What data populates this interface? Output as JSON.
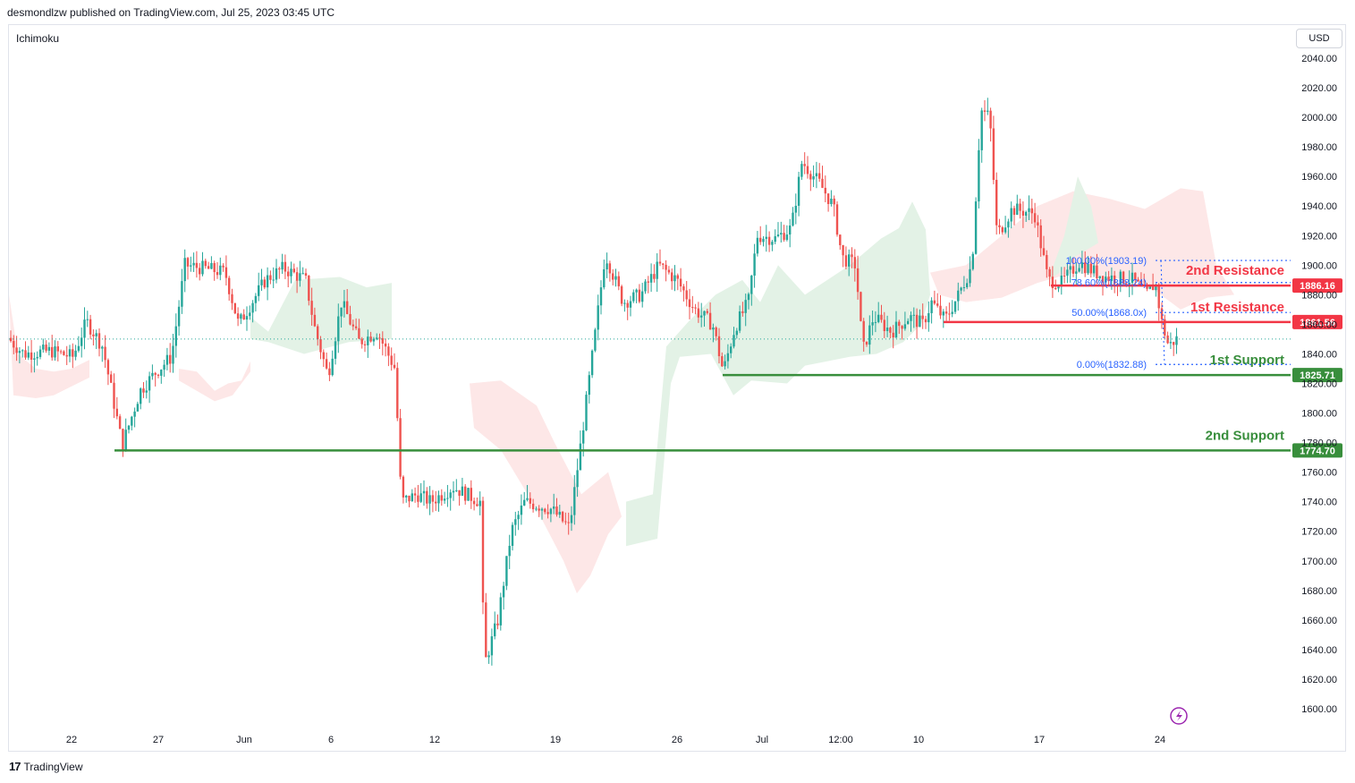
{
  "header": {
    "publisher": "desmondlzw published on TradingView.com, Jul 25, 2023 03:45 UTC"
  },
  "indicator": "Ichimoku",
  "currency": "USD",
  "brand": "TradingView",
  "colors": {
    "up": "#26a69a",
    "down": "#ef5350",
    "resistance": "#f23645",
    "support": "#388e3c",
    "fib": "#2962ff",
    "cloud_bull": "#e3f2e6",
    "cloud_bear": "#fde7e7",
    "tag_red": "#f23645",
    "tag_green": "#388e3c"
  },
  "chart_data": {
    "type": "candlestick",
    "symbol_currency": "USD",
    "ylim": [
      1587,
      2046
    ],
    "y_ticks": [
      1600,
      1620,
      1640,
      1660,
      1680,
      1700,
      1720,
      1740,
      1760,
      1780,
      1800,
      1820,
      1840,
      1860,
      1880,
      1900,
      1920,
      1940,
      1960,
      1980,
      2000,
      2020,
      2040
    ],
    "x_ticks": [
      "22",
      "27",
      "Jun",
      "6",
      "12",
      "19",
      "26",
      "Jul",
      "12:00",
      "10",
      "17",
      "24"
    ],
    "levels": [
      {
        "name": "2nd Resistance",
        "price": 1886.16,
        "kind": "resistance",
        "tag": "1886.16"
      },
      {
        "name": "1st Resistance",
        "price": 1861.56,
        "kind": "resistance",
        "tag": "1861.56"
      },
      {
        "name": "1st Support",
        "price": 1825.71,
        "kind": "support",
        "tag": "1825.71"
      },
      {
        "name": "2nd Support",
        "price": 1774.7,
        "kind": "support",
        "tag": "1774.70"
      }
    ],
    "fibonacci": [
      {
        "label": "100.00%(1903.19)",
        "price": 1903.19
      },
      {
        "label": "78.60%(1888.24)",
        "price": 1888.24
      },
      {
        "label": "50.00%(1868.0x)",
        "price": 1868.0
      },
      {
        "label": "0.00%(1832.88)",
        "price": 1832.88
      }
    ],
    "last_price": 1850,
    "anchors": [
      [
        10,
        1852
      ],
      [
        30,
        1840
      ],
      [
        60,
        1842
      ],
      [
        85,
        1838
      ],
      [
        100,
        1862
      ],
      [
        118,
        1845
      ],
      [
        128,
        1815
      ],
      [
        140,
        1778
      ],
      [
        160,
        1815
      ],
      [
        178,
        1828
      ],
      [
        195,
        1838
      ],
      [
        210,
        1900
      ],
      [
        230,
        1898
      ],
      [
        255,
        1895
      ],
      [
        270,
        1860
      ],
      [
        300,
        1890
      ],
      [
        320,
        1898
      ],
      [
        345,
        1890
      ],
      [
        355,
        1858
      ],
      [
        370,
        1825
      ],
      [
        385,
        1875
      ],
      [
        405,
        1848
      ],
      [
        425,
        1855
      ],
      [
        445,
        1830
      ],
      [
        452,
        1740
      ],
      [
        470,
        1745
      ],
      [
        485,
        1740
      ],
      [
        510,
        1750
      ],
      [
        540,
        1740
      ],
      [
        545,
        1630
      ],
      [
        560,
        1660
      ],
      [
        575,
        1720
      ],
      [
        590,
        1740
      ],
      [
        620,
        1735
      ],
      [
        640,
        1722
      ],
      [
        655,
        1790
      ],
      [
        668,
        1850
      ],
      [
        680,
        1908
      ],
      [
        700,
        1875
      ],
      [
        720,
        1880
      ],
      [
        740,
        1900
      ],
      [
        760,
        1890
      ],
      [
        780,
        1870
      ],
      [
        800,
        1860
      ],
      [
        812,
        1828
      ],
      [
        825,
        1858
      ],
      [
        840,
        1875
      ],
      [
        850,
        1920
      ],
      [
        870,
        1918
      ],
      [
        888,
        1925
      ],
      [
        900,
        1970
      ],
      [
        920,
        1955
      ],
      [
        935,
        1940
      ],
      [
        945,
        1905
      ],
      [
        960,
        1900
      ],
      [
        968,
        1842
      ],
      [
        980,
        1865
      ],
      [
        1000,
        1855
      ],
      [
        1020,
        1865
      ],
      [
        1035,
        1860
      ],
      [
        1045,
        1875
      ],
      [
        1060,
        1863
      ],
      [
        1075,
        1880
      ],
      [
        1090,
        1900
      ],
      [
        1100,
        2005
      ],
      [
        1110,
        2000
      ],
      [
        1118,
        1920
      ],
      [
        1135,
        1938
      ],
      [
        1160,
        1935
      ],
      [
        1175,
        1890
      ],
      [
        1190,
        1888
      ],
      [
        1210,
        1902
      ],
      [
        1228,
        1895
      ],
      [
        1240,
        1892
      ],
      [
        1270,
        1890
      ],
      [
        1285,
        1880
      ],
      [
        1295,
        1888
      ],
      [
        1302,
        1862
      ],
      [
        1310,
        1845
      ],
      [
        1318,
        1850
      ]
    ],
    "cloud_bull": [
      [
        [
          280,
          1865
        ],
        [
          300,
          1855
        ],
        [
          330,
          1890
        ],
        [
          380,
          1892
        ],
        [
          410,
          1885
        ],
        [
          438,
          1888
        ],
        [
          438,
          1850
        ],
        [
          390,
          1848
        ],
        [
          340,
          1840
        ],
        [
          300,
          1848
        ],
        [
          280,
          1850
        ]
      ],
      [
        [
          700,
          1740
        ],
        [
          730,
          1745
        ],
        [
          745,
          1845
        ],
        [
          770,
          1862
        ],
        [
          800,
          1880
        ],
        [
          830,
          1890
        ],
        [
          850,
          1875
        ],
        [
          870,
          1900
        ],
        [
          900,
          1880
        ],
        [
          950,
          1900
        ],
        [
          985,
          1918
        ],
        [
          1005,
          1925
        ],
        [
          1020,
          1943
        ],
        [
          1035,
          1924
        ],
        [
          1040,
          1880
        ],
        [
          1030,
          1860
        ],
        [
          1010,
          1848
        ],
        [
          980,
          1840
        ],
        [
          950,
          1838
        ],
        [
          900,
          1832
        ],
        [
          880,
          1820
        ],
        [
          840,
          1822
        ],
        [
          820,
          1812
        ],
        [
          795,
          1840
        ],
        [
          760,
          1838
        ],
        [
          750,
          1820
        ],
        [
          735,
          1715
        ],
        [
          700,
          1710
        ]
      ],
      [
        [
          1172,
          1890
        ],
        [
          1190,
          1920
        ],
        [
          1205,
          1960
        ],
        [
          1220,
          1940
        ],
        [
          1228,
          1915
        ],
        [
          1200,
          1905
        ],
        [
          1185,
          1895
        ]
      ]
    ],
    "cloud_bear": [
      [
        [
          10,
          1880
        ],
        [
          20,
          1840
        ],
        [
          40,
          1830
        ],
        [
          60,
          1828
        ],
        [
          80,
          1830
        ],
        [
          100,
          1836
        ],
        [
          100,
          1824
        ],
        [
          80,
          1818
        ],
        [
          60,
          1812
        ],
        [
          40,
          1810
        ],
        [
          15,
          1812
        ]
      ],
      [
        [
          200,
          1830
        ],
        [
          220,
          1828
        ],
        [
          240,
          1815
        ],
        [
          255,
          1820
        ],
        [
          270,
          1822
        ],
        [
          280,
          1835
        ],
        [
          280,
          1828
        ],
        [
          260,
          1812
        ],
        [
          240,
          1808
        ],
        [
          220,
          1815
        ],
        [
          200,
          1822
        ]
      ],
      [
        [
          525,
          1820
        ],
        [
          560,
          1822
        ],
        [
          600,
          1805
        ],
        [
          620,
          1780
        ],
        [
          650,
          1745
        ],
        [
          680,
          1760
        ],
        [
          695,
          1730
        ],
        [
          680,
          1718
        ],
        [
          660,
          1690
        ],
        [
          645,
          1678
        ],
        [
          630,
          1700
        ],
        [
          600,
          1735
        ],
        [
          560,
          1775
        ],
        [
          530,
          1790
        ]
      ],
      [
        [
          1040,
          1895
        ],
        [
          1080,
          1900
        ],
        [
          1120,
          1920
        ],
        [
          1160,
          1940
        ],
        [
          1200,
          1950
        ],
        [
          1240,
          1945
        ],
        [
          1280,
          1938
        ],
        [
          1320,
          1952
        ],
        [
          1345,
          1950
        ],
        [
          1360,
          1900
        ],
        [
          1380,
          1880
        ],
        [
          1350,
          1878
        ],
        [
          1320,
          1870
        ],
        [
          1280,
          1888
        ],
        [
          1240,
          1892
        ],
        [
          1200,
          1895
        ],
        [
          1160,
          1888
        ],
        [
          1120,
          1878
        ],
        [
          1080,
          1875
        ],
        [
          1050,
          1880
        ]
      ]
    ]
  }
}
